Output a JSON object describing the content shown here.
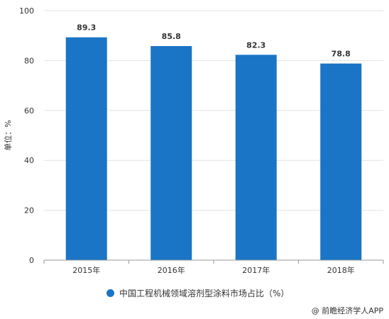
{
  "chart_data": {
    "type": "bar",
    "categories": [
      "2015年",
      "2016年",
      "2017年",
      "2018年"
    ],
    "series": [
      {
        "name": "中国工程机械领域溶剂型涂料市场占比（%）",
        "values": [
          89.3,
          85.8,
          82.3,
          78.8
        ]
      }
    ],
    "ylabel": "单位：%",
    "ylim": [
      0,
      100
    ],
    "yticks": [
      0,
      20,
      40,
      60,
      80,
      100
    ],
    "grid": true,
    "legend_position": "bottom",
    "bar_color": "#1a75c6"
  },
  "source_text": "@ 前瞻经济学人APP"
}
